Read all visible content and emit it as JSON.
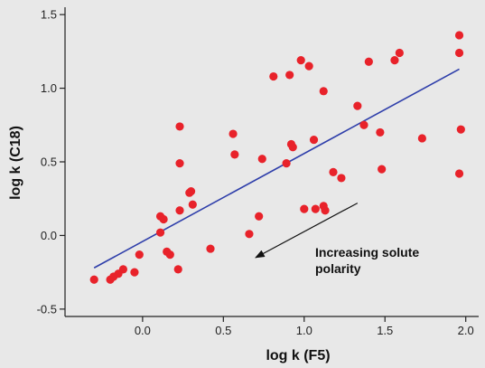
{
  "chart_data": {
    "type": "scatter",
    "xlabel": "log k (F5)",
    "ylabel": "log k (C18)",
    "xlim": [
      -0.48,
      2.08
    ],
    "ylim": [
      -0.55,
      1.55
    ],
    "x_ticks": [
      0.0,
      0.5,
      1.0,
      1.5,
      2.0
    ],
    "x_tick_labels": [
      "0.0",
      "0.5",
      "1.0",
      "1.5",
      "2.0"
    ],
    "y_ticks": [
      -0.5,
      0.0,
      0.5,
      1.0,
      1.5
    ],
    "y_tick_labels": [
      "-0.5",
      "0.0",
      "0.5",
      "1.0",
      "1.5"
    ],
    "points": [
      [
        -0.3,
        -0.3
      ],
      [
        -0.2,
        -0.3
      ],
      [
        -0.18,
        -0.28
      ],
      [
        -0.15,
        -0.26
      ],
      [
        -0.12,
        -0.23
      ],
      [
        -0.05,
        -0.25
      ],
      [
        -0.02,
        -0.13
      ],
      [
        0.11,
        0.02
      ],
      [
        0.11,
        0.13
      ],
      [
        0.13,
        0.11
      ],
      [
        0.15,
        -0.11
      ],
      [
        0.17,
        -0.13
      ],
      [
        0.22,
        -0.23
      ],
      [
        0.23,
        0.17
      ],
      [
        0.23,
        0.49
      ],
      [
        0.23,
        0.74
      ],
      [
        0.29,
        0.29
      ],
      [
        0.3,
        0.3
      ],
      [
        0.31,
        0.21
      ],
      [
        0.42,
        -0.09
      ],
      [
        0.56,
        0.69
      ],
      [
        0.57,
        0.55
      ],
      [
        0.66,
        0.01
      ],
      [
        0.72,
        0.13
      ],
      [
        0.74,
        0.52
      ],
      [
        0.81,
        1.08
      ],
      [
        0.89,
        0.49
      ],
      [
        0.91,
        1.09
      ],
      [
        0.92,
        0.62
      ],
      [
        0.93,
        0.6
      ],
      [
        0.98,
        1.19
      ],
      [
        1.0,
        0.18
      ],
      [
        1.03,
        1.15
      ],
      [
        1.06,
        0.65
      ],
      [
        1.07,
        0.18
      ],
      [
        1.12,
        0.2
      ],
      [
        1.12,
        0.98
      ],
      [
        1.13,
        0.17
      ],
      [
        1.18,
        0.43
      ],
      [
        1.23,
        0.39
      ],
      [
        1.33,
        0.88
      ],
      [
        1.37,
        0.75
      ],
      [
        1.4,
        1.18
      ],
      [
        1.47,
        0.7
      ],
      [
        1.48,
        0.45
      ],
      [
        1.56,
        1.19
      ],
      [
        1.59,
        1.24
      ],
      [
        1.73,
        0.66
      ],
      [
        1.96,
        1.36
      ],
      [
        1.96,
        1.24
      ],
      [
        1.97,
        0.72
      ],
      [
        1.96,
        0.42
      ]
    ],
    "fit_line": {
      "x": [
        -0.3,
        1.96
      ],
      "y": [
        -0.22,
        1.13
      ]
    },
    "point_color": "#e8222a",
    "line_color": "#2e3eaa",
    "background_color": "#e8e8e8",
    "grid": false,
    "annotation": {
      "lines": [
        "Increasing solute",
        "polarity"
      ],
      "arrow_from": [
        1.33,
        0.22
      ],
      "arrow_to": [
        0.7,
        -0.15
      ]
    }
  }
}
